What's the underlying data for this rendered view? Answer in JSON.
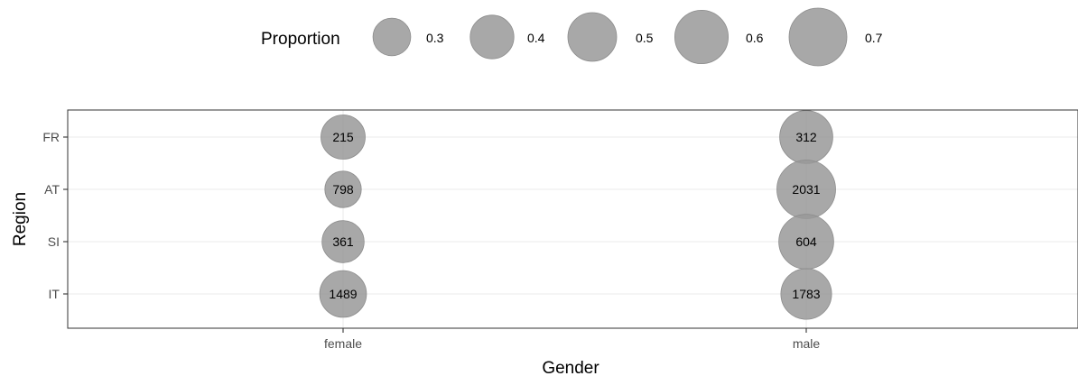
{
  "chart_data": {
    "type": "scatter",
    "xlabel": "Gender",
    "ylabel": "Region",
    "x_categories": [
      "female",
      "male"
    ],
    "y_categories": [
      "FR",
      "AT",
      "SI",
      "IT"
    ],
    "size_variable": "Proportion",
    "legend": {
      "title": "Proportion",
      "placement": "top",
      "values": [
        0.3,
        0.4,
        0.5,
        0.6,
        0.7
      ],
      "labels": [
        "0.3",
        "0.4",
        "0.5",
        "0.6",
        "0.7"
      ]
    },
    "points": [
      {
        "x": "female",
        "y": "FR",
        "count": 215,
        "label": "215",
        "proportion": 0.41
      },
      {
        "x": "female",
        "y": "AT",
        "count": 798,
        "label": "798",
        "proportion": 0.28
      },
      {
        "x": "female",
        "y": "SI",
        "count": 361,
        "label": "361",
        "proportion": 0.37
      },
      {
        "x": "female",
        "y": "IT",
        "count": 1489,
        "label": "1489",
        "proportion": 0.46
      },
      {
        "x": "male",
        "y": "FR",
        "count": 312,
        "label": "312",
        "proportion": 0.59
      },
      {
        "x": "male",
        "y": "AT",
        "count": 2031,
        "label": "2031",
        "proportion": 0.72
      },
      {
        "x": "male",
        "y": "SI",
        "count": 604,
        "label": "604",
        "proportion": 0.63
      },
      {
        "x": "male",
        "y": "IT",
        "count": 1783,
        "label": "1783",
        "proportion": 0.54
      }
    ],
    "grid": true,
    "colors": {
      "bubble": "#999999",
      "bubble_stroke": "#8c8c8c",
      "grid": "#ebebeb",
      "panel_border": "#333333"
    }
  }
}
